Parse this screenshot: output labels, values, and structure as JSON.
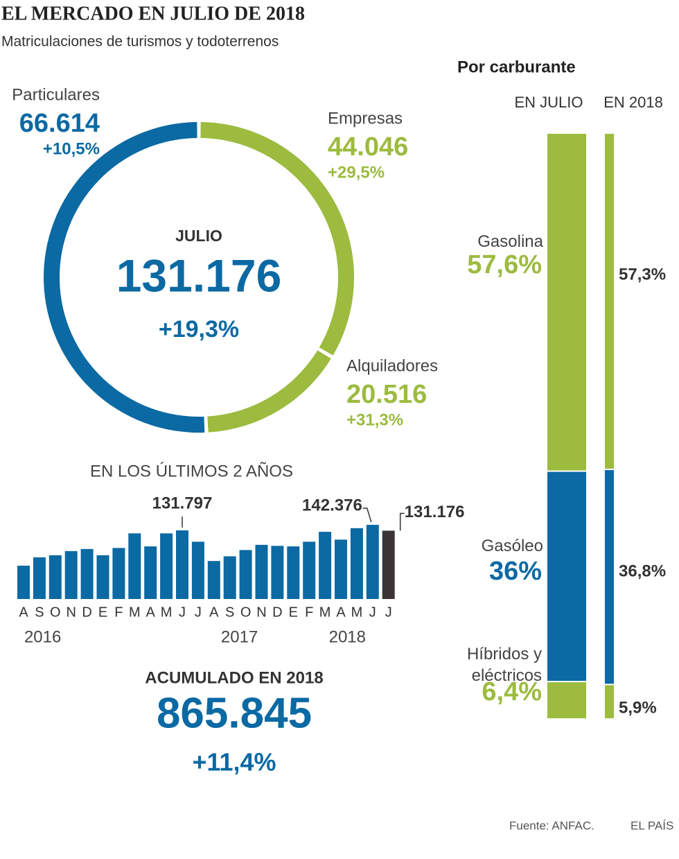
{
  "header": {
    "title": "EL MERCADO EN JULIO DE 2018",
    "subtitle": "Matriculaciones de turismos y todoterrenos"
  },
  "chart_data": [
    {
      "type": "donut",
      "center_label": "JULIO",
      "center_value": "131.176",
      "center_change": "+19,3%",
      "categories": [
        "Empresas",
        "Alquiladores",
        "Particulares"
      ],
      "values": [
        44046,
        20516,
        66614
      ],
      "value_labels": [
        "44.046",
        "20.516",
        "66.614"
      ],
      "changes": [
        "+29,5%",
        "+31,3%",
        "+10,5%"
      ],
      "colors": [
        "#9cbb3f",
        "#9cbb3f",
        "#0b69a3"
      ]
    },
    {
      "type": "bar",
      "title": "EN LOS ÚLTIMOS 2 AÑOS",
      "categories": [
        "A",
        "S",
        "O",
        "N",
        "D",
        "E",
        "F",
        "M",
        "A",
        "M",
        "J",
        "J",
        "A",
        "S",
        "O",
        "N",
        "D",
        "E",
        "F",
        "M",
        "A",
        "M",
        "J",
        "J"
      ],
      "values": [
        64000,
        80000,
        84000,
        92000,
        96000,
        84000,
        98000,
        126000,
        101000,
        126000,
        131797,
        110000,
        73000,
        82000,
        94000,
        104000,
        102000,
        101000,
        110000,
        129000,
        114000,
        136000,
        142376,
        131176
      ],
      "value_labels": [
        null,
        null,
        null,
        null,
        null,
        null,
        null,
        null,
        null,
        null,
        "131.797",
        null,
        null,
        null,
        null,
        null,
        null,
        null,
        null,
        null,
        null,
        null,
        "142.376",
        "131.176"
      ],
      "colors": [
        "#0b69a3",
        "#0b69a3",
        "#0b69a3",
        "#0b69a3",
        "#0b69a3",
        "#0b69a3",
        "#0b69a3",
        "#0b69a3",
        "#0b69a3",
        "#0b69a3",
        "#0b69a3",
        "#0b69a3",
        "#0b69a3",
        "#0b69a3",
        "#0b69a3",
        "#0b69a3",
        "#0b69a3",
        "#0b69a3",
        "#0b69a3",
        "#0b69a3",
        "#0b69a3",
        "#0b69a3",
        "#0b69a3",
        "#3b3437"
      ],
      "year_labels": [
        "2016",
        "2017",
        "2018"
      ],
      "ylim": [
        0,
        150000
      ]
    },
    {
      "type": "stacked_bar",
      "title": "Por carburante",
      "categories": [
        "EN JULIO",
        "EN 2018"
      ],
      "series": [
        {
          "name": "Gasolina",
          "color": "#9cbb3f",
          "values": [
            57.6,
            57.3
          ],
          "value_labels": [
            "57,6%",
            "57,3%"
          ]
        },
        {
          "name": "Gasóleo",
          "color": "#0b69a3",
          "values": [
            36,
            36.8
          ],
          "value_labels": [
            "36%",
            "36,8%"
          ]
        },
        {
          "name": "Híbridos y eléctricos",
          "color": "#9cbb3f",
          "values": [
            6.4,
            5.9
          ],
          "value_labels": [
            "6,4%",
            "5,9%"
          ]
        }
      ],
      "ylim": [
        0,
        100
      ]
    }
  ],
  "accumulated": {
    "label": "ACUMULADO EN 2018",
    "value": "865.845",
    "change": "+11,4%"
  },
  "footer": {
    "source": "Fuente: ANFAC.",
    "brand": "EL PAÍS"
  }
}
